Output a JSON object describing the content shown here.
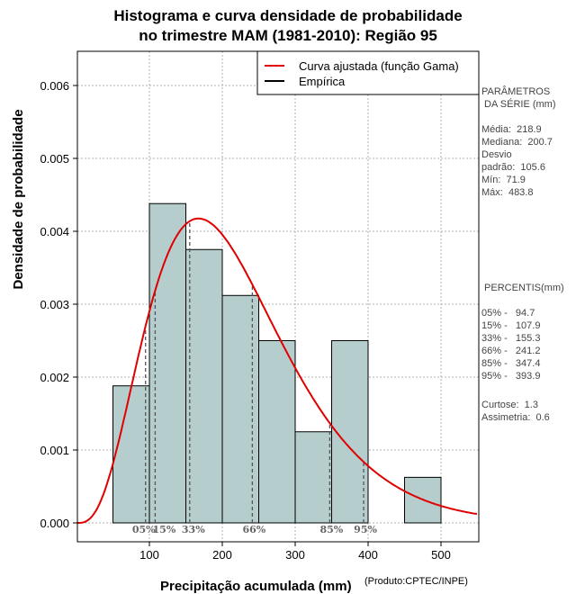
{
  "chart_data": {
    "type": "bar",
    "title": "Histograma e curva densidade de probabilidade",
    "subtitle": "no trimestre MAM (1981-2010): Região 95",
    "xlabel": "Precipitação acumulada (mm)",
    "ylabel": "Densidade de probabilidade",
    "source": "(Produto:CPTEC/INPE)",
    "xlim": [
      0,
      550
    ],
    "ylim": [
      0,
      0.0064
    ],
    "xticks": [
      100,
      200,
      300,
      400,
      500
    ],
    "yticks": [
      0.0,
      0.001,
      0.002,
      0.003,
      0.004,
      0.005,
      0.006
    ],
    "ytick_labels": [
      "0.000",
      "0.001",
      "0.002",
      "0.003",
      "0.004",
      "0.005",
      "0.006"
    ],
    "bins": [
      {
        "from": 50,
        "to": 100,
        "density": 0.00188
      },
      {
        "from": 100,
        "to": 150,
        "density": 0.00438
      },
      {
        "from": 150,
        "to": 200,
        "density": 0.00375
      },
      {
        "from": 200,
        "to": 250,
        "density": 0.00312
      },
      {
        "from": 250,
        "to": 300,
        "density": 0.0025
      },
      {
        "from": 300,
        "to": 350,
        "density": 0.00125
      },
      {
        "from": 350,
        "to": 400,
        "density": 0.0025
      },
      {
        "from": 450,
        "to": 500,
        "density": 0.000625
      }
    ],
    "gamma_fit": {
      "shape": 4.23,
      "rate": 0.0193
    },
    "legend": [
      {
        "label": "Curva ajustada (função Gama)",
        "color": "#e00000"
      },
      {
        "label": "Empírica",
        "color": "#000000"
      }
    ],
    "percentile_marks": [
      {
        "label": "05%",
        "value": 94.7
      },
      {
        "label": "15%",
        "value": 107.9
      },
      {
        "label": "33%",
        "value": 155.3
      },
      {
        "label": "66%",
        "value": 241.2
      },
      {
        "label": "85%",
        "value": 347.4
      },
      {
        "label": "95%",
        "value": 393.9
      }
    ],
    "colors": {
      "bar_fill": "#b5cdcd",
      "curve": "#e00000",
      "grid": "#b0b0b0"
    }
  },
  "stats": {
    "header1": "PARÂMETROS",
    "header2": " DA SÉRIE (mm)",
    "media": "Média:  218.9",
    "mediana": "Mediana:  200.7",
    "desvio1": "Desvio",
    "desvio2": "padrão:  105.6",
    "min": "Mín:  71.9",
    "max": "Máx:  483.8"
  },
  "percentis": {
    "header": " PERCENTIS(mm)",
    "p05": "05% -   94.7",
    "p15": "15% -   107.9",
    "p33": "33% -   155.3",
    "p66": "66% -   241.2",
    "p85": "85% -   347.4",
    "p95": "95% -   393.9",
    "curtose": "Curtose:  1.3",
    "assimetria": "Assimetria:  0.6"
  }
}
